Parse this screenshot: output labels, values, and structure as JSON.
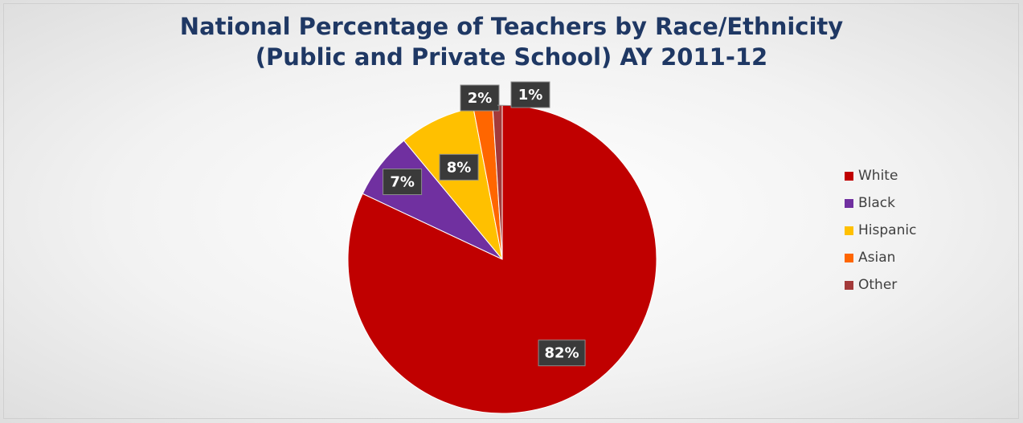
{
  "chart_data": {
    "type": "pie",
    "title_line1": "National Percentage of Teachers by Race/Ethnicity",
    "title_line2": "(Public and Private School) AY 2011-12",
    "slices": [
      {
        "name": "White",
        "value": 82,
        "label": "82%",
        "color": "#c00000"
      },
      {
        "name": "Black",
        "value": 7,
        "label": "7%",
        "color": "#7030a0"
      },
      {
        "name": "Hispanic",
        "value": 8,
        "label": "8%",
        "color": "#ffc000"
      },
      {
        "name": "Asian",
        "value": 2,
        "label": "2%",
        "color": "#ff6600"
      },
      {
        "name": "Other",
        "value": 1,
        "label": "1%",
        "color": "#a33a3a"
      }
    ],
    "legend_position": "right"
  }
}
